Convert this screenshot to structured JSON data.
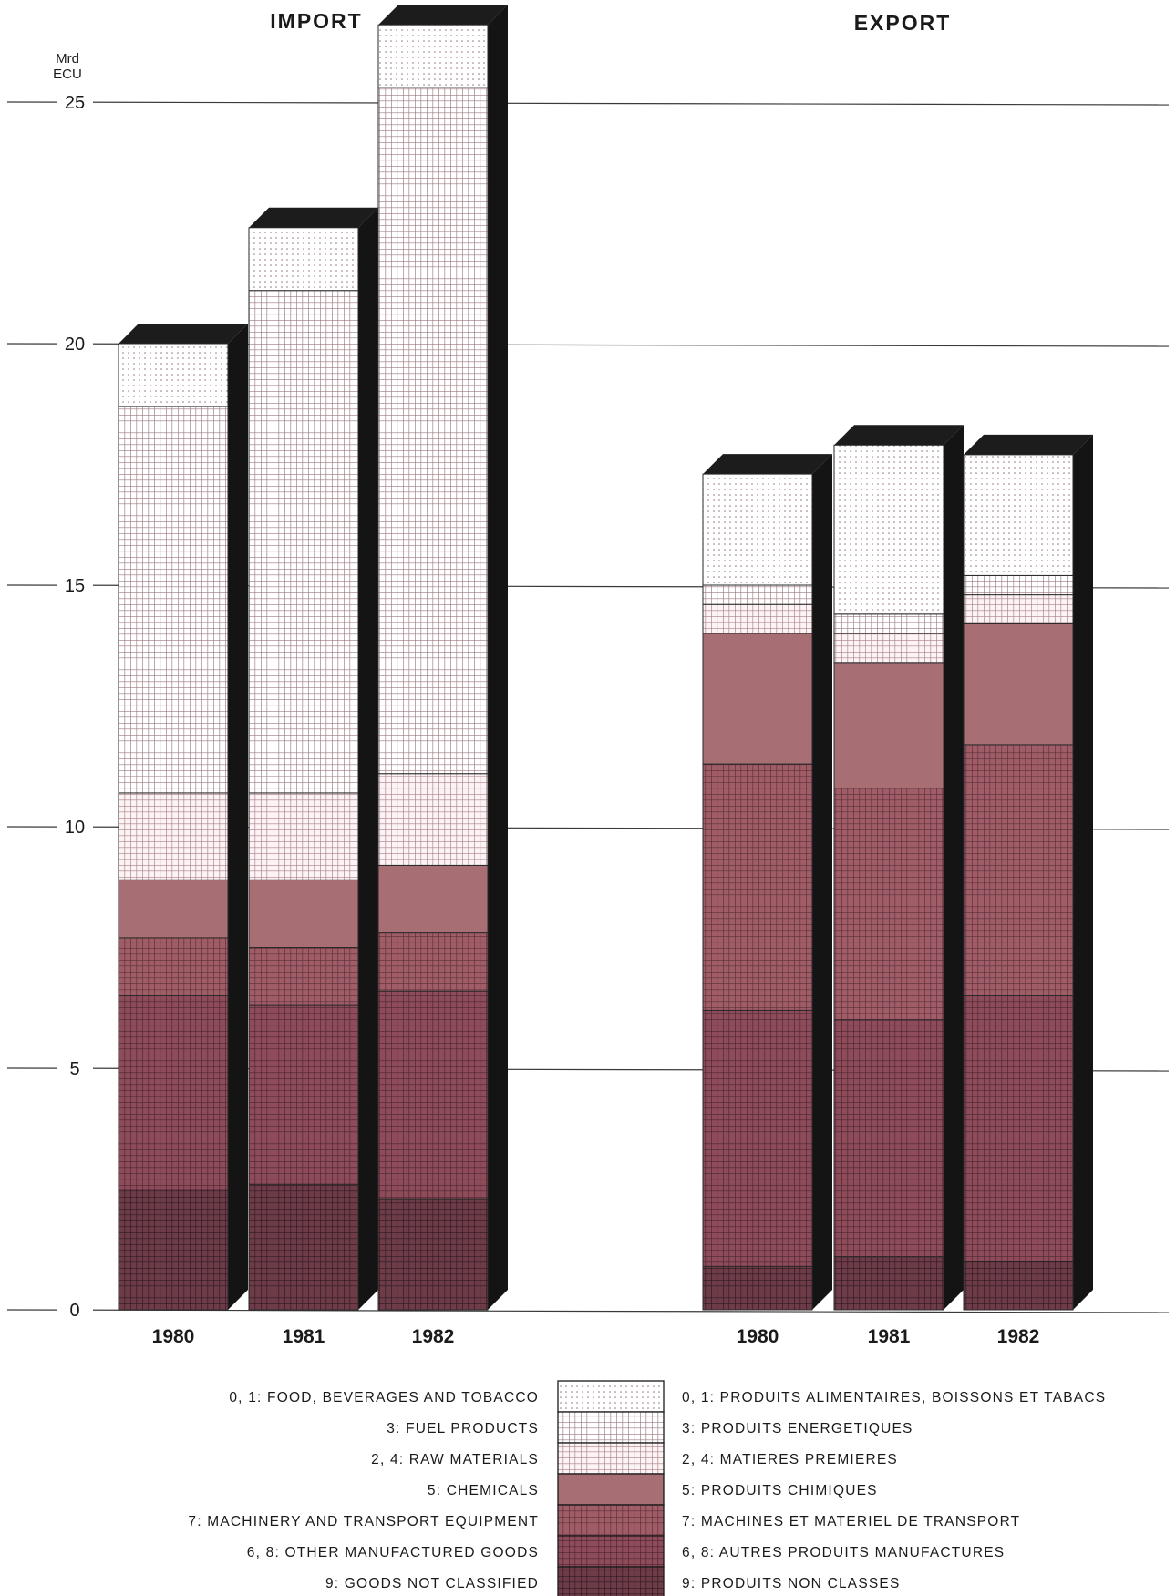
{
  "chart_data": {
    "type": "bar",
    "stacked": true,
    "unit_label_line1": "Mrd",
    "unit_label_line2": "ECU",
    "y_ticks": [
      0,
      5,
      10,
      15,
      20,
      25
    ],
    "ylim": [
      0,
      25
    ],
    "grid": true,
    "panels": [
      {
        "title": "IMPORT",
        "categories": [
          "1980",
          "1981",
          "1982"
        ],
        "series": [
          {
            "key": "s9",
            "values": [
              2.5,
              2.6,
              2.3
            ]
          },
          {
            "key": "s68",
            "values": [
              4.0,
              3.7,
              4.3
            ]
          },
          {
            "key": "s7",
            "values": [
              1.2,
              1.2,
              1.2
            ]
          },
          {
            "key": "s5",
            "values": [
              1.2,
              1.4,
              1.4
            ]
          },
          {
            "key": "s24",
            "values": [
              1.8,
              1.8,
              1.9
            ]
          },
          {
            "key": "s3",
            "values": [
              8.0,
              10.4,
              14.2
            ]
          },
          {
            "key": "s01",
            "values": [
              1.3,
              1.3,
              1.3
            ]
          }
        ]
      },
      {
        "title": "EXPORT",
        "categories": [
          "1980",
          "1981",
          "1982"
        ],
        "series": [
          {
            "key": "s9",
            "values": [
              0.9,
              1.1,
              1.0
            ]
          },
          {
            "key": "s68",
            "values": [
              5.3,
              4.9,
              5.5
            ]
          },
          {
            "key": "s7",
            "values": [
              5.1,
              4.8,
              5.2
            ]
          },
          {
            "key": "s5",
            "values": [
              2.7,
              2.6,
              2.5
            ]
          },
          {
            "key": "s24",
            "values": [
              0.6,
              0.6,
              0.6
            ]
          },
          {
            "key": "s3",
            "values": [
              0.4,
              0.4,
              0.4
            ]
          },
          {
            "key": "s01",
            "values": [
              2.3,
              3.5,
              2.5
            ]
          }
        ]
      }
    ],
    "legend": [
      {
        "key": "s01",
        "en": "0, 1: FOOD, BEVERAGES AND TOBACCO",
        "fr": "0, 1: PRODUITS ALIMENTAIRES, BOISSONS ET TABACS"
      },
      {
        "key": "s3",
        "en": "3: FUEL PRODUCTS",
        "fr": "3: PRODUITS ENERGETIQUES"
      },
      {
        "key": "s24",
        "en": "2, 4: RAW MATERIALS",
        "fr": "2, 4: MATIERES PREMIERES"
      },
      {
        "key": "s5",
        "en": "5: CHEMICALS",
        "fr": "5: PRODUITS CHIMIQUES"
      },
      {
        "key": "s7",
        "en": "7: MACHINERY AND TRANSPORT EQUIPMENT",
        "fr": "7: MACHINES ET MATERIEL DE TRANSPORT"
      },
      {
        "key": "s68",
        "en": "6, 8: OTHER MANUFACTURED GOODS",
        "fr": "6, 8: AUTRES PRODUITS MANUFACTURES"
      },
      {
        "key": "s9",
        "en": "9: GOODS NOT CLASSIFIED",
        "fr": "9: PRODUITS NON CLASSES"
      }
    ],
    "style": {
      "s01": {
        "fill": "#ffffff",
        "pattern": "dots",
        "ink": "#8a6a70"
      },
      "s3": {
        "fill": "#ffffff",
        "pattern": "grid",
        "ink": "#9a7a80"
      },
      "s24": {
        "fill": "#fbf3f4",
        "pattern": "grid",
        "ink": "#a88088"
      },
      "s5": {
        "fill": "#a76e73",
        "pattern": "none",
        "ink": "#a76e73"
      },
      "s7": {
        "fill": "#a05d68",
        "pattern": "grid",
        "ink": "#5a2f38"
      },
      "s68": {
        "fill": "#8e4b5a",
        "pattern": "grid",
        "ink": "#4a2530"
      },
      "s9": {
        "fill": "#6e3c48",
        "pattern": "grid",
        "ink": "#2e1820"
      }
    }
  }
}
